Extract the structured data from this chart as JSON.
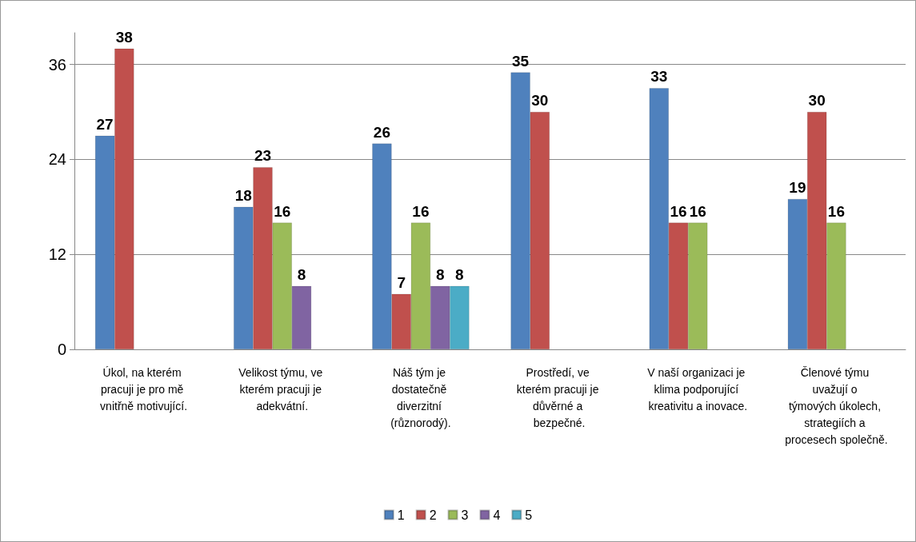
{
  "chart_data": {
    "type": "bar",
    "categories": [
      "Úkol, na kterém pracuji je pro mě vnitřně motivující.",
      "Velikost týmu, ve kterém pracuji je adekvátní.",
      "Náš tým je dostatečně diverzitní (různorodý).",
      "Prostředí, ve kterém pracuji je důvěrné a bezpečné.",
      "V naší organizaci je klima podporující kreativitu a inovace.",
      "Členové týmu uvažují o týmových úkolech, strategiích a procesech společně."
    ],
    "series": [
      {
        "name": "1",
        "color": "#4f81bd",
        "values": [
          27,
          18,
          26,
          35,
          33,
          19
        ]
      },
      {
        "name": "2",
        "color": "#c0504d",
        "values": [
          38,
          23,
          7,
          30,
          16,
          30
        ]
      },
      {
        "name": "3",
        "color": "#9bbb59",
        "values": [
          null,
          16,
          16,
          null,
          16,
          16
        ]
      },
      {
        "name": "4",
        "color": "#8064a2",
        "values": [
          null,
          8,
          8,
          null,
          null,
          null
        ]
      },
      {
        "name": "5",
        "color": "#4bacc6",
        "values": [
          null,
          null,
          8,
          null,
          null,
          null
        ]
      }
    ],
    "ylim": [
      0,
      40
    ],
    "yticks": [
      0,
      12,
      24,
      36
    ],
    "grid": "y",
    "legend": "bottom",
    "data_labels": true
  }
}
